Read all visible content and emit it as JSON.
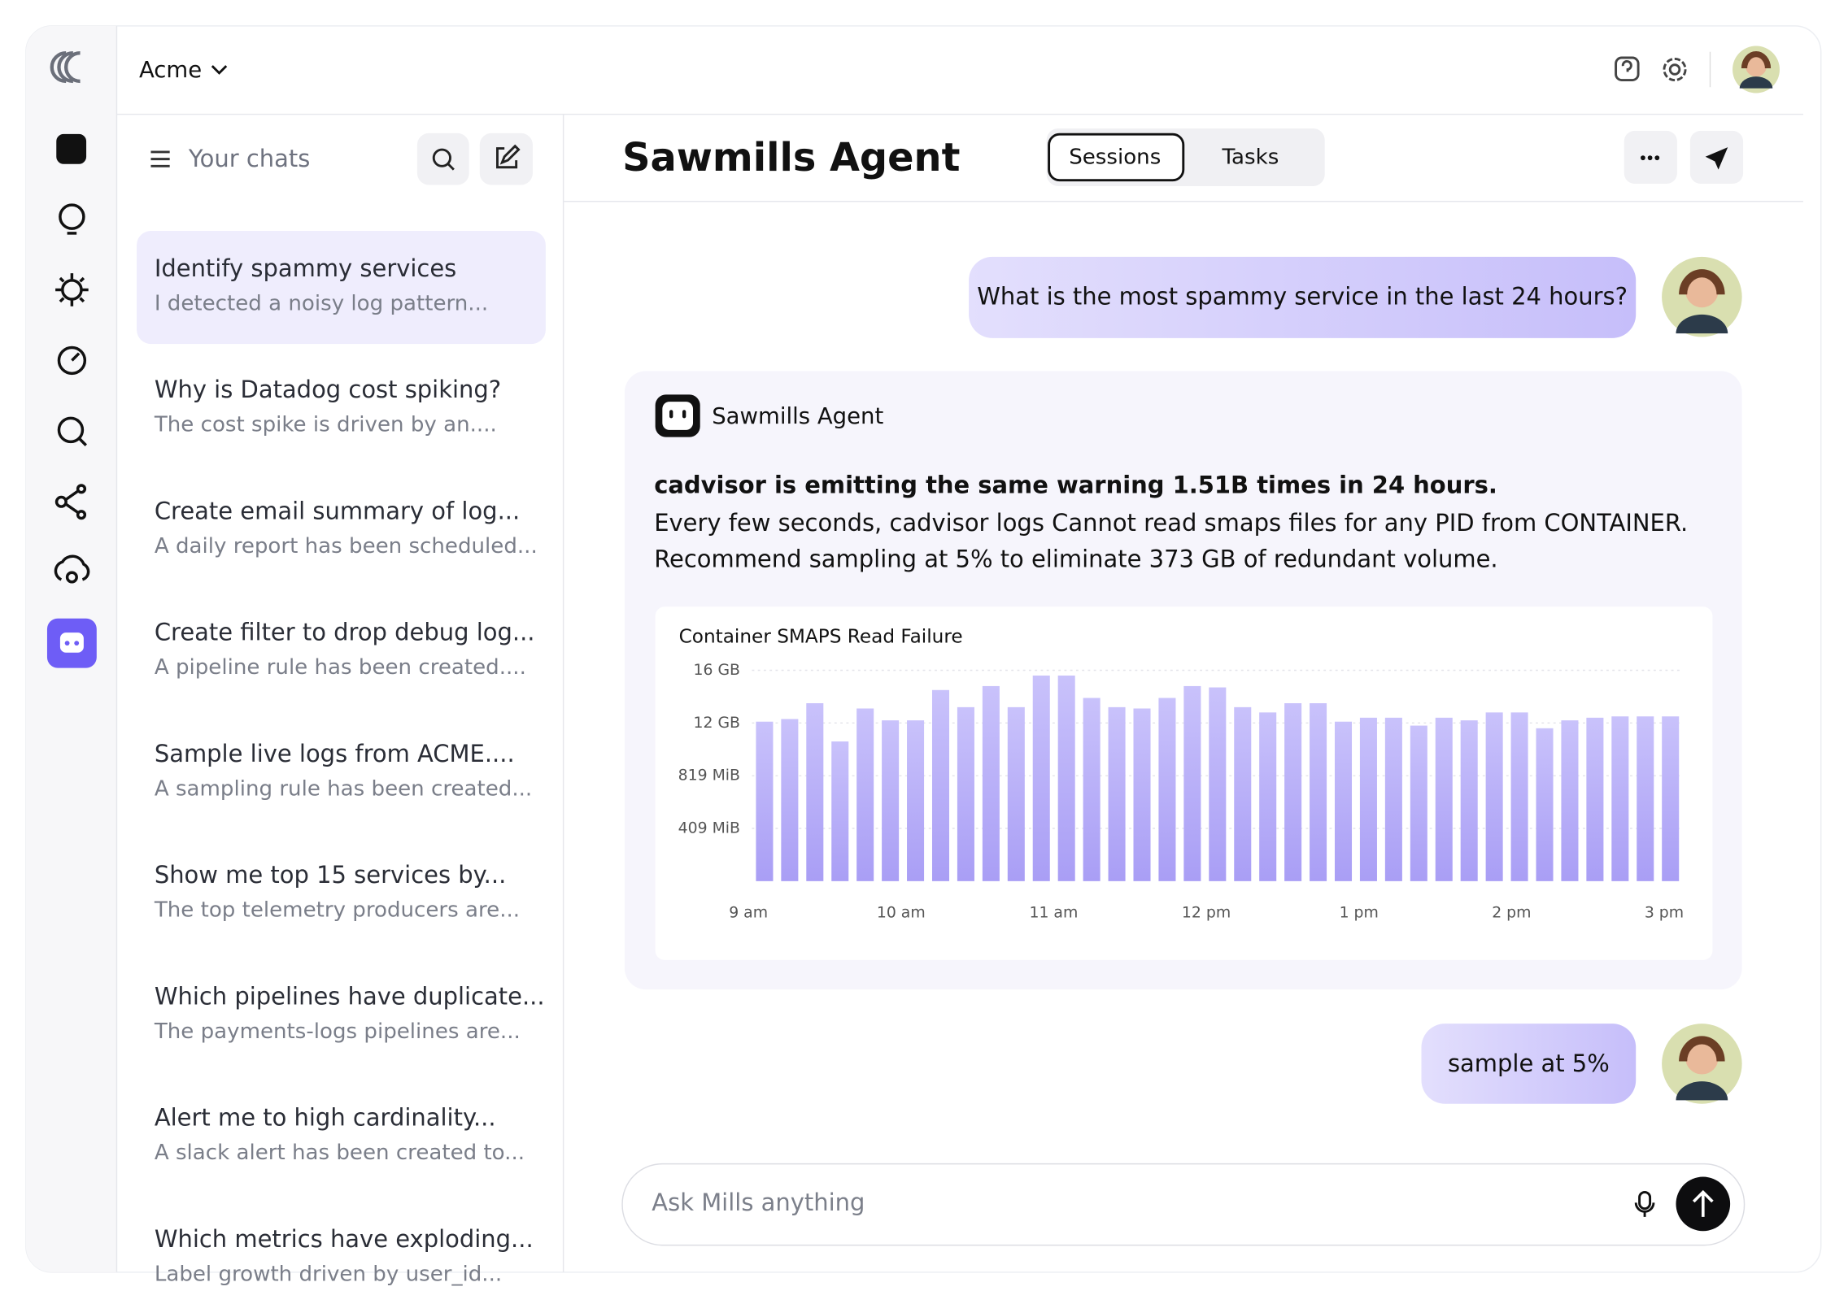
{
  "workspace": "Acme",
  "chats_panel": {
    "title": "Your chats",
    "items": [
      {
        "title": "Identify spammy services",
        "preview": "I detected a noisy log pattern..."
      },
      {
        "title": "Why is Datadog cost spiking?",
        "preview": "The cost spike is driven by an...."
      },
      {
        "title": "Create email summary of log...",
        "preview": "A daily report has been scheduled..."
      },
      {
        "title": "Create filter to drop debug log...",
        "preview": "A pipeline rule has been created...."
      },
      {
        "title": "Sample live logs from ACME....",
        "preview": "A sampling rule has been created..."
      },
      {
        "title": "Show me top 15 services by...",
        "preview": "The top telemetry producers are..."
      },
      {
        "title": "Which pipelines have duplicate...",
        "preview": "The payments-logs pipelines are..."
      },
      {
        "title": "Alert me to high cardinality...",
        "preview": "A slack alert has been created to..."
      },
      {
        "title": "Which metrics have exploding...",
        "preview": "Label growth driven by user_id..."
      }
    ]
  },
  "header": {
    "title": "Sawmills Agent",
    "tabs": [
      "Sessions",
      "Tasks"
    ]
  },
  "messages": {
    "user_1": "What is the most spammy service in the last 24 hours?",
    "agent_name": "Sawmills Agent",
    "agent_lines": [
      "cadvisor is emitting the same warning 1.51B times in 24 hours.",
      "Every few seconds, cadvisor logs Cannot read smaps files for any PID from CONTAINER.",
      "Recommend sampling at 5% to eliminate 373 GB of redundant volume."
    ],
    "user_2": "sample at 5%"
  },
  "input_placeholder": "Ask Mills anything",
  "chart_data": {
    "type": "bar",
    "title": "Container SMAPS Read Failure",
    "color": "#b8aff8",
    "values": [
      12.1,
      12.3,
      13.5,
      10.6,
      13.1,
      12.2,
      12.2,
      14.5,
      13.2,
      14.8,
      13.2,
      15.6,
      15.6,
      13.9,
      13.2,
      13.1,
      13.9,
      14.8,
      14.7,
      13.2,
      12.8,
      13.5,
      13.5,
      12.1,
      12.4,
      12.4,
      11.8,
      12.4,
      12.2,
      12.8,
      12.8,
      11.6,
      12.2,
      12.4,
      12.5,
      12.5,
      12.5
    ],
    "ylim": [
      0,
      16
    ],
    "yticks": [
      {
        "value": 4,
        "label": "409 MiB"
      },
      {
        "value": 8,
        "label": "819 MiB"
      },
      {
        "value": 12,
        "label": "12 GB"
      },
      {
        "value": 16,
        "label": "16 GB"
      }
    ],
    "xtick_labels": [
      "9 am",
      "10 am",
      "11 am",
      "12 pm",
      "1 pm",
      "2 pm",
      "3 pm"
    ],
    "grid": true
  }
}
